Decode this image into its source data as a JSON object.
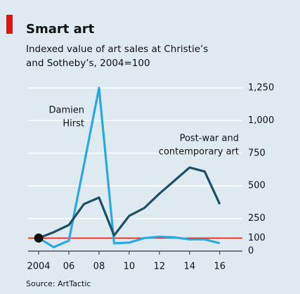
{
  "chart_data": {
    "type": "line",
    "title": "Smart art",
    "subtitle": [
      "Indexed value of art sales at Christie’s",
      "and Sotheby’s, 2004=100"
    ],
    "source": "Source: ArtTactic",
    "x": [
      2004,
      2005,
      2006,
      2007,
      2008,
      2009,
      2010,
      2011,
      2012,
      2013,
      2014,
      2015,
      2016
    ],
    "series": [
      {
        "name": [
          "Damien",
          "Hirst"
        ],
        "color": "#2aa9e1",
        "values": [
          100,
          30,
          80,
          660,
          1250,
          60,
          65,
          100,
          110,
          105,
          90,
          90,
          60
        ]
      },
      {
        "name": [
          "Post-war and",
          "contemporary art"
        ],
        "color": "#1b4f66",
        "values": [
          100,
          145,
          200,
          360,
          410,
          120,
          270,
          330,
          440,
          540,
          640,
          610,
          360
        ]
      }
    ],
    "xlim": [
      2003.3,
      2017.5
    ],
    "xticks": [
      2004,
      {
        "value": 2006,
        "label": "06"
      },
      {
        "value": 2008,
        "label": "08"
      },
      {
        "value": 2010,
        "label": "10"
      },
      {
        "value": 2012,
        "label": "12"
      },
      {
        "value": 2014,
        "label": "14"
      },
      {
        "value": 2016,
        "label": "16"
      }
    ],
    "ylim": [
      0,
      1250
    ],
    "yticks": [
      0,
      100,
      250,
      500,
      750,
      1000,
      1250
    ],
    "ytick_labels": [
      "0",
      "100",
      "250",
      "500",
      "750",
      "1,000",
      "1,250"
    ],
    "reference_line": {
      "value": 100,
      "color": "#e3120b"
    },
    "start_marker": {
      "x": 2004,
      "y": 100,
      "color": "#111111"
    },
    "grid": true,
    "background": "#dfe9f0"
  }
}
